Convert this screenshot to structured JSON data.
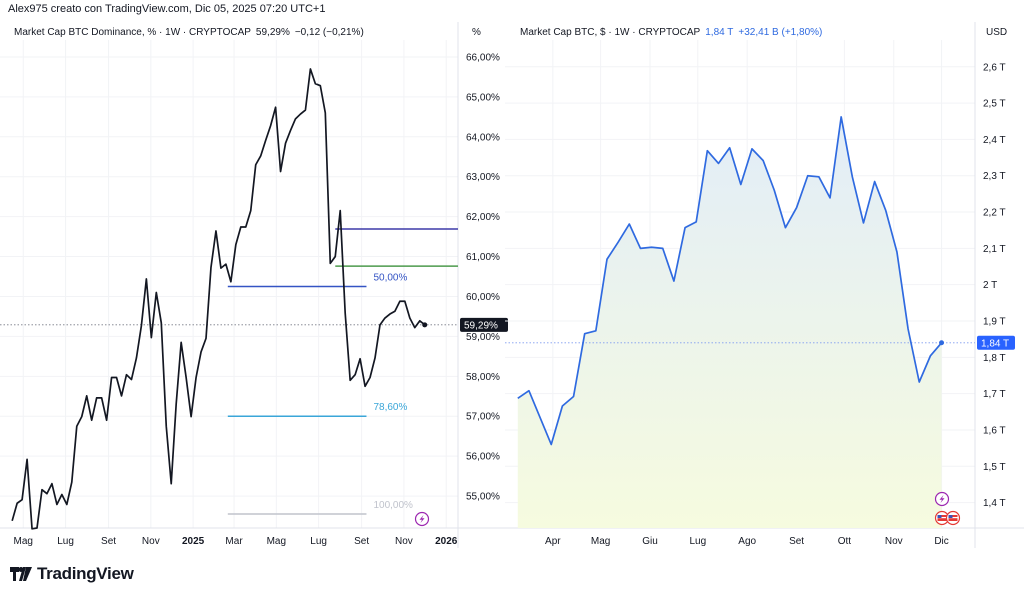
{
  "credit": "Alex975 creato con TradingView.com, Dic 05, 2025 07:20 UTC+1",
  "brand": {
    "name": "TradingView",
    "icon": "tradingview-logo"
  },
  "colors": {
    "dominance_line": "#131722",
    "cap_line": "#2f6ae0",
    "cap_fill_top": "#e2edf8",
    "cap_fill_bottom": "#f6fbdf",
    "price_tag_dark": "#131722",
    "price_tag_blue": "#2962ff",
    "fib_top": "#3d3aa8",
    "fib_green": "#4c9a4c",
    "fib_50": "#3454c4",
    "fib_786": "#3aa6d8",
    "fib_100": "#c0c3cc",
    "event_icon": "#9c27b0"
  },
  "chart_data": [
    {
      "type": "line",
      "legend": {
        "symbol": "Market Cap BTC Dominance, % · 1W · CRYPTOCAP",
        "last": "59,29%",
        "change": "−0,12 (−0,21%)"
      },
      "unit_label": "%",
      "interval": "1W",
      "x_start": "2024-04-15",
      "x_end": "2025-12-01",
      "values": [
        54.38,
        54.82,
        54.91,
        55.92,
        54.18,
        54.2,
        55.16,
        55.06,
        55.31,
        54.79,
        55.04,
        54.79,
        55.35,
        56.75,
        56.99,
        57.51,
        56.9,
        57.46,
        57.46,
        56.9,
        57.97,
        57.97,
        57.51,
        58.04,
        57.92,
        58.46,
        59.27,
        60.44,
        58.97,
        60.1,
        59.34,
        56.75,
        55.31,
        57.31,
        58.85,
        57.97,
        56.99,
        57.97,
        58.61,
        58.95,
        60.73,
        61.64,
        60.71,
        60.81,
        60.37,
        61.3,
        61.74,
        61.74,
        62.15,
        63.3,
        63.52,
        63.91,
        64.28,
        64.74,
        63.13,
        63.84,
        64.16,
        64.45,
        64.57,
        64.67,
        65.7,
        65.33,
        65.28,
        64.6,
        60.83,
        61.0,
        62.15,
        59.58,
        57.9,
        58.04,
        58.44,
        57.75,
        57.97,
        58.46,
        59.29,
        59.46,
        59.56,
        59.63,
        59.88,
        59.88,
        59.46,
        59.22,
        59.39,
        59.29
      ],
      "ylim": [
        54.2,
        66.3
      ],
      "y_ticks": [
        {
          "v": 55,
          "label": "55,00%"
        },
        {
          "v": 56,
          "label": "56,00%"
        },
        {
          "v": 57,
          "label": "57,00%"
        },
        {
          "v": 58,
          "label": "58,00%"
        },
        {
          "v": 59,
          "label": "59,00%"
        },
        {
          "v": 60,
          "label": "60,00%"
        },
        {
          "v": 61,
          "label": "61,00%"
        },
        {
          "v": 62,
          "label": "62,00%"
        },
        {
          "v": 63,
          "label": "63,00%"
        },
        {
          "v": 64,
          "label": "64,00%"
        },
        {
          "v": 65,
          "label": "65,00%"
        },
        {
          "v": 66,
          "label": "66,00%"
        }
      ],
      "x_ticks": [
        {
          "date": "2024-05-01",
          "label": "Mag"
        },
        {
          "date": "2024-07-01",
          "label": "Lug"
        },
        {
          "date": "2024-09-01",
          "label": "Set"
        },
        {
          "date": "2024-11-01",
          "label": "Nov"
        },
        {
          "date": "2025-01-01",
          "label": "2025",
          "bold": true
        },
        {
          "date": "2025-03-01",
          "label": "Mar"
        },
        {
          "date": "2025-05-01",
          "label": "Mag"
        },
        {
          "date": "2025-07-01",
          "label": "Lug"
        },
        {
          "date": "2025-09-01",
          "label": "Set"
        },
        {
          "date": "2025-11-01",
          "label": "Nov"
        },
        {
          "date": "2026-01-01",
          "label": "2026",
          "bold": true
        }
      ],
      "x_range": [
        "2024-04-09",
        "2026-01-18"
      ],
      "last_price_tag": "59,29%",
      "last_value": 59.29,
      "levels": [
        {
          "value": 61.69,
          "from": "2025-07-25",
          "to": "2026-01-18",
          "color_key": "fib_top",
          "label": ""
        },
        {
          "value": 60.76,
          "from": "2025-07-25",
          "to": "2026-01-18",
          "color_key": "fib_green",
          "label": ""
        },
        {
          "value": 60.25,
          "from": "2025-02-20",
          "to": "2025-09-08",
          "color_key": "fib_50",
          "label": "50,00%"
        },
        {
          "value": 57.0,
          "from": "2025-02-20",
          "to": "2025-09-08",
          "color_key": "fib_786",
          "label": "78,60%"
        },
        {
          "value": 54.55,
          "from": "2025-02-20",
          "to": "2025-09-08",
          "color_key": "fib_100",
          "label": "100,00%"
        }
      ],
      "event_icons": [
        "lightning-icon"
      ]
    },
    {
      "type": "area",
      "legend": {
        "symbol": "Market Cap BTC, $ · 1W · CRYPTOCAP",
        "last": "1,84 T",
        "change": "+32,41 B (+1,80%)"
      },
      "unit_label": "USD",
      "interval": "1W",
      "x_start": "2025-03-10",
      "x_end": "2025-12-01",
      "values": [
        1.687,
        1.708,
        1.634,
        1.56,
        1.666,
        1.692,
        1.865,
        1.873,
        2.07,
        2.117,
        2.167,
        2.1,
        2.103,
        2.1,
        2.01,
        2.157,
        2.173,
        2.369,
        2.334,
        2.377,
        2.276,
        2.374,
        2.342,
        2.26,
        2.157,
        2.212,
        2.3,
        2.297,
        2.239,
        2.462,
        2.297,
        2.17,
        2.284,
        2.204,
        2.09,
        1.878,
        1.732,
        1.804,
        1.84
      ],
      "ylim": [
        1.33,
        2.66
      ],
      "y_ticks": [
        {
          "v": 1.4,
          "label": "1,4 T"
        },
        {
          "v": 1.5,
          "label": "1,5 T"
        },
        {
          "v": 1.6,
          "label": "1,6 T"
        },
        {
          "v": 1.7,
          "label": "1,7 T"
        },
        {
          "v": 1.8,
          "label": "1,8 T"
        },
        {
          "v": 1.9,
          "label": "1,9 T"
        },
        {
          "v": 2.0,
          "label": "2 T"
        },
        {
          "v": 2.1,
          "label": "2,1 T"
        },
        {
          "v": 2.2,
          "label": "2,2 T"
        },
        {
          "v": 2.3,
          "label": "2,3 T"
        },
        {
          "v": 2.4,
          "label": "2,4 T"
        },
        {
          "v": 2.5,
          "label": "2,5 T"
        },
        {
          "v": 2.6,
          "label": "2,6 T"
        }
      ],
      "x_ticks": [
        {
          "date": "2025-04-01",
          "label": "Apr"
        },
        {
          "date": "2025-05-01",
          "label": "Mag"
        },
        {
          "date": "2025-06-01",
          "label": "Giu"
        },
        {
          "date": "2025-07-01",
          "label": "Lug"
        },
        {
          "date": "2025-08-01",
          "label": "Ago"
        },
        {
          "date": "2025-09-01",
          "label": "Set"
        },
        {
          "date": "2025-10-01",
          "label": "Ott"
        },
        {
          "date": "2025-11-01",
          "label": "Nov"
        },
        {
          "date": "2025-12-01",
          "label": "Dic"
        }
      ],
      "x_range": [
        "2025-03-07",
        "2025-12-22"
      ],
      "last_price_tag": "1,84 T",
      "last_value": 1.84,
      "event_icons": [
        "lightning-icon",
        "us-flag-icon",
        "us-flag-icon"
      ]
    }
  ]
}
